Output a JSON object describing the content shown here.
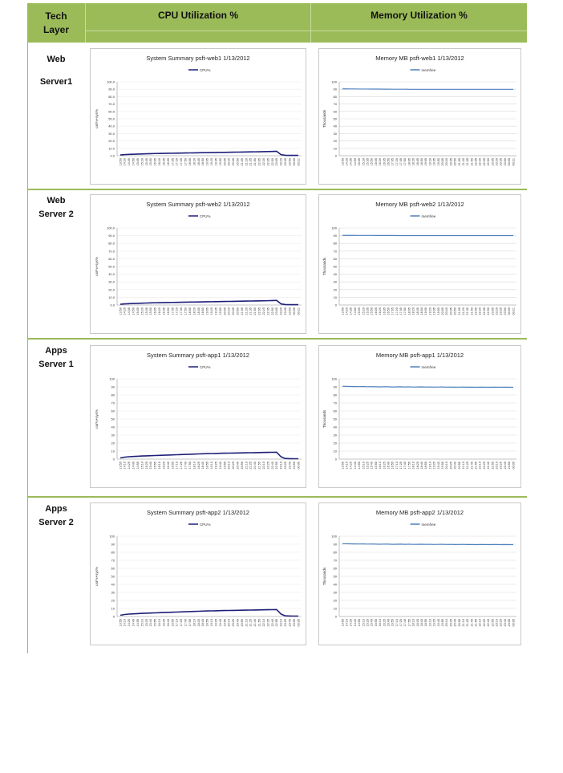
{
  "header": {
    "tech_line1": "Tech",
    "tech_line2": "Layer",
    "cpu": "CPU Utilization %",
    "mem": "Memory Utilization %"
  },
  "rows": [
    {
      "label_line1": "Web",
      "label_line2": "Server1"
    },
    {
      "label_line1": "Web",
      "label_line2": "Server 2"
    },
    {
      "label_line1": "Apps",
      "label_line2": "Server 1"
    },
    {
      "label_line1": "Apps",
      "label_line2": "Server 2"
    }
  ],
  "colors": {
    "header_bg": "#9bbb59",
    "cpu_line": "#1f1f7a",
    "mem_line": "#4f81bd"
  },
  "chart_data": [
    {
      "type": "line",
      "title": "System Summary psft-web1  1/13/2012",
      "ylabel": "usr%+sys%",
      "ylim": [
        0,
        100
      ],
      "yticks": [
        "100.0",
        "90.0",
        "80.0",
        "70.0",
        "60.0",
        "50.0",
        "40.0",
        "30.0",
        "20.0",
        "10.0",
        "0.0"
      ],
      "x": [
        "13:50",
        "14:20",
        "14:35",
        "14:50",
        "15:05",
        "15:20",
        "15:35",
        "15:50",
        "16:05",
        "16:20",
        "16:35",
        "16:50",
        "17:05",
        "17:20",
        "17:35",
        "17:50",
        "18:05",
        "18:20",
        "18:35",
        "18:50",
        "19:05",
        "19:20",
        "19:35",
        "19:50",
        "20:05",
        "20:20",
        "20:35",
        "20:50",
        "21:05",
        "21:20",
        "21:35",
        "21:50",
        "22:05",
        "22:20",
        "22:35",
        "22:50",
        "23:05",
        "23:20",
        "23:35",
        "23:50",
        "00:05",
        "00:21"
      ],
      "series": [
        {
          "name": "CPU%",
          "values": [
            1,
            1.5,
            1.8,
            2.0,
            2.2,
            2.4,
            2.6,
            2.8,
            3.0,
            3.1,
            3.2,
            3.3,
            3.4,
            3.5,
            3.6,
            3.7,
            3.8,
            3.9,
            4.0,
            4.1,
            4.2,
            4.3,
            4.4,
            4.5,
            4.6,
            4.7,
            4.8,
            4.9,
            5.0,
            5.1,
            5.2,
            5.3,
            5.4,
            5.5,
            5.6,
            5.8,
            6.0,
            1.5,
            0.6,
            0.5,
            0.5,
            0.5
          ]
        }
      ]
    },
    {
      "type": "line",
      "title": "Memory MB psft-web1  1/13/2012",
      "ylabel": "Thousands",
      "ylim": [
        0,
        100
      ],
      "yticks": [
        "100",
        "90",
        "80",
        "70",
        "60",
        "50",
        "40",
        "30",
        "20",
        "10",
        "0"
      ],
      "x": [
        "13:50",
        "14:20",
        "14:35",
        "14:50",
        "15:05",
        "15:20",
        "15:35",
        "15:50",
        "16:05",
        "16:20",
        "16:35",
        "16:50",
        "17:05",
        "17:20",
        "17:35",
        "17:50",
        "18:05",
        "18:20",
        "18:35",
        "18:50",
        "19:05",
        "19:20",
        "19:35",
        "19:50",
        "20:05",
        "20:20",
        "20:35",
        "20:50",
        "21:05",
        "21:20",
        "21:35",
        "21:50",
        "22:05",
        "22:20",
        "22:35",
        "22:50",
        "23:05",
        "23:20",
        "23:35",
        "23:50",
        "00:05",
        "00:21"
      ],
      "series": [
        {
          "name": "memfree",
          "values": [
            90.5,
            90.5,
            90.4,
            90.4,
            90.3,
            90.3,
            90.3,
            90.2,
            90.2,
            90.2,
            90.1,
            90.1,
            90.0,
            90.0,
            90.0,
            90.0,
            89.9,
            89.9,
            89.9,
            89.9,
            89.9,
            89.9,
            89.9,
            89.9,
            89.9,
            89.9,
            89.9,
            89.9,
            89.9,
            89.9,
            89.9,
            89.9,
            89.9,
            89.9,
            89.9,
            89.9,
            89.9,
            89.9,
            89.9,
            89.9,
            89.9,
            89.9
          ]
        }
      ]
    },
    {
      "type": "line",
      "title": "System Summary psft-web2  1/13/2012",
      "ylabel": "usr%+sys%",
      "ylim": [
        0,
        100
      ],
      "yticks": [
        "100.0",
        "90.0",
        "80.0",
        "70.0",
        "60.0",
        "50.0",
        "40.0",
        "30.0",
        "20.0",
        "10.0",
        "0.0"
      ],
      "x": [
        "13:50",
        "14:20",
        "14:35",
        "14:50",
        "15:05",
        "15:20",
        "15:35",
        "15:50",
        "16:05",
        "16:20",
        "16:35",
        "16:50",
        "17:05",
        "17:20",
        "17:35",
        "17:50",
        "18:05",
        "18:20",
        "18:35",
        "18:50",
        "19:05",
        "19:20",
        "19:35",
        "19:50",
        "20:05",
        "20:20",
        "20:35",
        "20:50",
        "21:05",
        "21:20",
        "21:35",
        "21:50",
        "22:05",
        "22:20",
        "22:35",
        "22:50",
        "23:05",
        "23:20",
        "23:35",
        "23:50",
        "00:05",
        "00:21"
      ],
      "series": [
        {
          "name": "CPU%",
          "values": [
            1,
            1.5,
            1.8,
            2.0,
            2.2,
            2.4,
            2.6,
            2.8,
            3.0,
            3.1,
            3.2,
            3.3,
            3.4,
            3.5,
            3.6,
            3.7,
            3.8,
            3.9,
            4.0,
            4.1,
            4.2,
            4.3,
            4.4,
            4.5,
            4.6,
            4.7,
            4.8,
            4.9,
            5.0,
            5.1,
            5.2,
            5.3,
            5.4,
            5.5,
            5.6,
            5.8,
            6.0,
            1.5,
            0.6,
            0.5,
            0.5,
            0.5
          ]
        }
      ]
    },
    {
      "type": "line",
      "title": "Memory MB psft-web2  1/13/2012",
      "ylabel": "Thousands",
      "ylim": [
        0,
        100
      ],
      "yticks": [
        "100",
        "90",
        "80",
        "70",
        "60",
        "50",
        "40",
        "30",
        "20",
        "10",
        "0"
      ],
      "x": [
        "13:50",
        "14:20",
        "14:35",
        "14:50",
        "15:05",
        "15:20",
        "15:35",
        "15:50",
        "16:05",
        "16:20",
        "16:35",
        "16:50",
        "17:05",
        "17:20",
        "17:35",
        "17:50",
        "18:05",
        "18:20",
        "18:35",
        "18:50",
        "19:05",
        "19:20",
        "19:35",
        "19:50",
        "20:05",
        "20:20",
        "20:35",
        "20:50",
        "21:05",
        "21:20",
        "21:35",
        "21:50",
        "22:05",
        "22:20",
        "22:35",
        "22:50",
        "23:05",
        "23:20",
        "23:35",
        "23:50",
        "00:05",
        "00:21"
      ],
      "series": [
        {
          "name": "memfree",
          "values": [
            90.4,
            90.4,
            90.4,
            90.4,
            90.3,
            90.3,
            90.3,
            90.3,
            90.2,
            90.2,
            90.2,
            90.2,
            90.2,
            90.1,
            90.1,
            90.1,
            90.1,
            90.1,
            90.1,
            90.1,
            90.1,
            90.1,
            90.1,
            90.1,
            90.1,
            90.1,
            90.1,
            90.1,
            90.1,
            90.1,
            90.1,
            90.1,
            90.1,
            90.1,
            90.1,
            90.1,
            90.1,
            90.1,
            90.1,
            90.1,
            90.1,
            90.1
          ]
        }
      ]
    },
    {
      "type": "line",
      "title": "System Summary psft-app1  1/13/2012",
      "ylabel": "usr%+sys%",
      "ylim": [
        0,
        100
      ],
      "yticks": [
        "100",
        "90",
        "80",
        "70",
        "60",
        "50",
        "40",
        "30",
        "20",
        "10",
        "0"
      ],
      "x": [
        "13:55",
        "14:10",
        "14:25",
        "14:40",
        "14:55",
        "15:10",
        "15:25",
        "15:40",
        "15:55",
        "16:10",
        "16:25",
        "16:40",
        "16:55",
        "17:10",
        "17:25",
        "17:40",
        "17:55",
        "18:10",
        "18:25",
        "18:40",
        "18:55",
        "19:10",
        "19:25",
        "19:40",
        "19:55",
        "20:10",
        "20:25",
        "20:40",
        "20:55",
        "21:10",
        "21:25",
        "21:40",
        "21:55",
        "22:10",
        "22:25",
        "22:40",
        "22:55",
        "23:10",
        "23:25",
        "23:40",
        "23:55",
        "00:05"
      ],
      "series": [
        {
          "name": "CPU%",
          "values": [
            1.5,
            2.5,
            3.0,
            3.3,
            3.6,
            3.9,
            4.1,
            4.3,
            4.5,
            4.7,
            4.9,
            5.1,
            5.3,
            5.5,
            5.7,
            5.9,
            6.1,
            6.3,
            6.5,
            6.7,
            6.9,
            7.0,
            7.1,
            7.3,
            7.4,
            7.5,
            7.6,
            7.7,
            7.8,
            7.9,
            8.0,
            8.1,
            8.2,
            8.3,
            8.4,
            8.5,
            8.6,
            3.0,
            0.8,
            0.6,
            0.5,
            0.5
          ]
        }
      ]
    },
    {
      "type": "line",
      "title": "Memory MB psft-app1  1/13/2012",
      "ylabel": "Thousands",
      "ylim": [
        0,
        100
      ],
      "yticks": [
        "100",
        "90",
        "80",
        "70",
        "60",
        "50",
        "40",
        "30",
        "20",
        "10",
        "0"
      ],
      "x": [
        "13:55",
        "14:10",
        "14:25",
        "14:40",
        "14:55",
        "15:10",
        "15:25",
        "15:40",
        "15:55",
        "16:10",
        "16:25",
        "16:40",
        "16:55",
        "17:10",
        "17:25",
        "17:40",
        "17:55",
        "18:10",
        "18:25",
        "18:40",
        "18:55",
        "19:10",
        "19:25",
        "19:40",
        "19:55",
        "20:10",
        "20:25",
        "20:40",
        "20:55",
        "21:10",
        "21:25",
        "21:40",
        "21:55",
        "22:10",
        "22:25",
        "22:40",
        "22:55",
        "23:10",
        "23:25",
        "23:40",
        "23:55",
        "00:05"
      ],
      "series": [
        {
          "name": "memfree",
          "values": [
            90.8,
            90.6,
            90.5,
            90.4,
            90.3,
            90.4,
            90.2,
            90.3,
            90.1,
            90.0,
            90.2,
            90.1,
            89.9,
            90.0,
            90.1,
            89.9,
            90.0,
            89.8,
            89.9,
            90.0,
            89.8,
            89.9,
            89.7,
            89.8,
            89.9,
            89.7,
            89.8,
            89.6,
            89.7,
            89.8,
            89.6,
            89.7,
            89.5,
            89.6,
            89.7,
            89.5,
            89.6,
            89.6,
            89.5,
            89.6,
            89.5,
            89.5
          ]
        }
      ]
    },
    {
      "type": "line",
      "title": "System Summary psft-app2  1/13/2012",
      "ylabel": "usr%+sys%",
      "ylim": [
        0,
        100
      ],
      "yticks": [
        "100",
        "90",
        "80",
        "70",
        "60",
        "50",
        "40",
        "30",
        "20",
        "10",
        "0"
      ],
      "x": [
        "13:55",
        "14:10",
        "14:25",
        "14:40",
        "14:55",
        "15:10",
        "15:25",
        "15:40",
        "15:55",
        "16:10",
        "16:25",
        "16:40",
        "16:55",
        "17:10",
        "17:25",
        "17:40",
        "17:55",
        "18:10",
        "18:25",
        "18:40",
        "18:55",
        "19:10",
        "19:25",
        "19:40",
        "19:55",
        "20:10",
        "20:25",
        "20:40",
        "20:55",
        "21:10",
        "21:25",
        "21:40",
        "21:55",
        "22:10",
        "22:25",
        "22:40",
        "22:55",
        "23:10",
        "23:25",
        "23:40",
        "23:55",
        "00:05"
      ],
      "series": [
        {
          "name": "CPU%",
          "values": [
            1.5,
            2.5,
            3.0,
            3.3,
            3.6,
            3.9,
            4.1,
            4.3,
            4.5,
            4.7,
            4.9,
            5.1,
            5.3,
            5.5,
            5.7,
            5.9,
            6.1,
            6.3,
            6.5,
            6.7,
            6.9,
            7.0,
            7.1,
            7.3,
            7.4,
            7.5,
            7.6,
            7.7,
            7.8,
            7.9,
            8.0,
            8.1,
            8.2,
            8.3,
            8.4,
            8.5,
            8.6,
            3.0,
            0.8,
            0.6,
            0.5,
            0.5
          ]
        }
      ]
    },
    {
      "type": "line",
      "title": "Memory MB psft-app2  1/13/2012",
      "ylabel": "Thousands",
      "ylim": [
        0,
        100
      ],
      "yticks": [
        "100",
        "90",
        "80",
        "70",
        "60",
        "50",
        "40",
        "30",
        "20",
        "10",
        "0"
      ],
      "x": [
        "13:55",
        "14:10",
        "14:25",
        "14:40",
        "14:55",
        "15:10",
        "15:25",
        "15:40",
        "15:55",
        "16:10",
        "16:25",
        "16:40",
        "16:55",
        "17:10",
        "17:25",
        "17:40",
        "17:55",
        "18:10",
        "18:25",
        "18:40",
        "18:55",
        "19:10",
        "19:25",
        "19:40",
        "19:55",
        "20:10",
        "20:25",
        "20:40",
        "20:55",
        "21:10",
        "21:25",
        "21:40",
        "21:55",
        "22:10",
        "22:25",
        "22:40",
        "22:55",
        "23:10",
        "23:25",
        "23:40",
        "23:55",
        "00:05"
      ],
      "series": [
        {
          "name": "memfree",
          "values": [
            90.7,
            90.6,
            90.5,
            90.4,
            90.3,
            90.4,
            90.2,
            90.3,
            90.1,
            90.0,
            90.2,
            90.1,
            89.9,
            90.0,
            90.1,
            89.9,
            90.0,
            89.8,
            89.9,
            90.0,
            89.8,
            89.9,
            89.7,
            89.8,
            89.9,
            89.7,
            89.8,
            89.6,
            89.7,
            89.8,
            89.6,
            89.7,
            89.5,
            89.6,
            89.7,
            89.5,
            89.6,
            89.6,
            89.5,
            89.6,
            89.5,
            89.5
          ]
        }
      ]
    }
  ]
}
